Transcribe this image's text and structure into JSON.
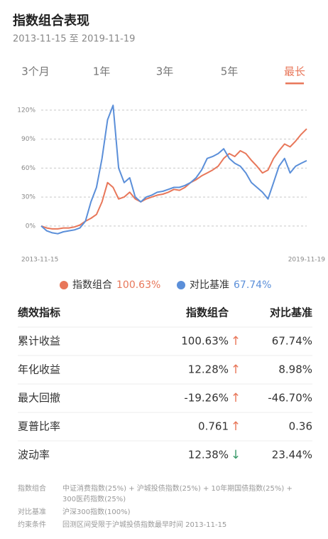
{
  "header": {
    "title": "指数组合表现",
    "period": "2013-11-15 至 2019-11-19"
  },
  "tabs": {
    "items": [
      "3个月",
      "1年",
      "3年",
      "5年",
      "最长"
    ],
    "active": 4
  },
  "chart_data": {
    "type": "line",
    "categories": [
      "2013-11-15",
      null,
      null,
      null,
      null,
      null,
      null,
      null,
      null,
      null,
      null,
      null,
      null,
      null,
      null,
      null,
      null,
      null,
      null,
      null,
      null,
      null,
      null,
      null,
      null,
      null,
      null,
      null,
      null,
      null,
      null,
      null,
      null,
      null,
      null,
      null,
      null,
      null,
      null,
      null,
      null,
      null,
      null,
      null,
      null,
      null,
      null,
      null,
      "2019-11-19"
    ],
    "series": [
      {
        "name": "指数组合",
        "color": "#e8775a",
        "legend_value": "100.63%",
        "values": [
          0,
          -2,
          -3,
          -3,
          -2,
          -2,
          -1,
          1,
          5,
          8,
          12,
          25,
          45,
          40,
          28,
          30,
          35,
          28,
          25,
          28,
          30,
          32,
          33,
          35,
          38,
          37,
          40,
          45,
          48,
          52,
          55,
          58,
          62,
          70,
          75,
          72,
          78,
          75,
          68,
          62,
          55,
          58,
          70,
          78,
          85,
          82,
          88,
          95,
          100.63
        ]
      },
      {
        "name": "对比基准",
        "color": "#5b8fd9",
        "legend_value": "67.74%",
        "values": [
          0,
          -5,
          -7,
          -8,
          -6,
          -5,
          -4,
          -2,
          5,
          25,
          40,
          70,
          110,
          125,
          60,
          45,
          50,
          30,
          25,
          30,
          32,
          35,
          36,
          38,
          40,
          40,
          42,
          45,
          50,
          58,
          70,
          72,
          75,
          80,
          70,
          65,
          62,
          55,
          45,
          40,
          35,
          28,
          45,
          62,
          70,
          55,
          62,
          65,
          67.74
        ]
      }
    ],
    "ylim": [
      -20,
      131
    ],
    "yticks": [
      {
        "value": 0,
        "label": "0%"
      },
      {
        "value": 30,
        "label": "30%"
      },
      {
        "value": 60,
        "label": "60%"
      },
      {
        "value": 90,
        "label": "90%"
      },
      {
        "value": 120,
        "label": "120%"
      }
    ],
    "grid": true
  },
  "table": {
    "header": [
      "绩效指标",
      "指数组合",
      "对比基准"
    ],
    "rows": [
      {
        "label": "累计收益",
        "value": "100.63%",
        "arrow": "↑",
        "benchmark": "67.74%"
      },
      {
        "label": "年化收益",
        "value": "12.28%",
        "arrow": "↑",
        "benchmark": "8.98%"
      },
      {
        "label": "最大回撤",
        "value": "-19.26%",
        "arrow": "↑",
        "benchmark": "-46.70%"
      },
      {
        "label": "夏普比率",
        "value": "0.761",
        "arrow": "↑",
        "benchmark": "0.36"
      },
      {
        "label": "波动率",
        "value": "12.38%",
        "arrow": "↓",
        "benchmark": "23.44%"
      }
    ]
  },
  "notes": [
    {
      "label": "指数组合",
      "lines": [
        "中证消费指数(25%) + 沪城投债指数(25%) + 10年期国债指数(25%) +",
        "300医药指数(25%)"
      ]
    },
    {
      "label": "对比基准",
      "lines": [
        "沪深300指数(100%)"
      ]
    },
    {
      "label": "约束条件",
      "lines": [
        "回测区间受限于沪城投债指数最早时间 2013-11-15"
      ]
    }
  ]
}
